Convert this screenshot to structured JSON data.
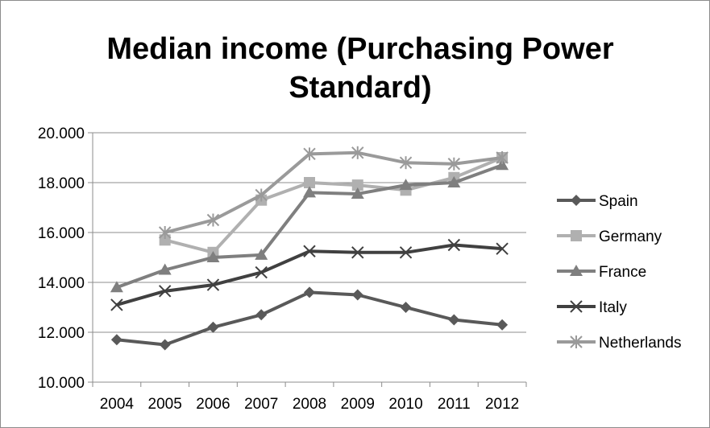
{
  "chart_data": {
    "type": "line",
    "title": "Median income (Purchasing Power Standard)",
    "title_lines": [
      "Median income (Purchasing Power",
      "Standard)"
    ],
    "xlabel": "",
    "ylabel": "",
    "categories": [
      "2004",
      "2005",
      "2006",
      "2007",
      "2008",
      "2009",
      "2010",
      "2011",
      "2012"
    ],
    "ylim": [
      10000,
      20000
    ],
    "yticks": [
      10000,
      12000,
      14000,
      16000,
      18000,
      20000
    ],
    "ytick_labels": [
      "10.000",
      "12.000",
      "14.000",
      "16.000",
      "18.000",
      "20.000"
    ],
    "grid": true,
    "legend_position": "right",
    "series": [
      {
        "name": "Spain",
        "color": "#595959",
        "marker": "diamond",
        "values": [
          11700,
          11500,
          12200,
          12700,
          13600,
          13500,
          13000,
          12500,
          12300
        ]
      },
      {
        "name": "Germany",
        "color": "#b0b0b0",
        "marker": "square",
        "values": [
          null,
          15700,
          15200,
          17300,
          18000,
          17900,
          17700,
          18200,
          19000
        ]
      },
      {
        "name": "France",
        "color": "#7f7f7f",
        "marker": "triangle",
        "values": [
          13800,
          14500,
          15000,
          15100,
          17600,
          17550,
          17900,
          18000,
          18700
        ]
      },
      {
        "name": "Italy",
        "color": "#404040",
        "marker": "x",
        "values": [
          13100,
          13650,
          13900,
          14400,
          15250,
          15200,
          15200,
          15500,
          15350
        ]
      },
      {
        "name": "Netherlands",
        "color": "#9a9a9a",
        "marker": "star",
        "values": [
          null,
          16000,
          16500,
          17500,
          19150,
          19200,
          18800,
          18750,
          19000
        ]
      }
    ]
  }
}
